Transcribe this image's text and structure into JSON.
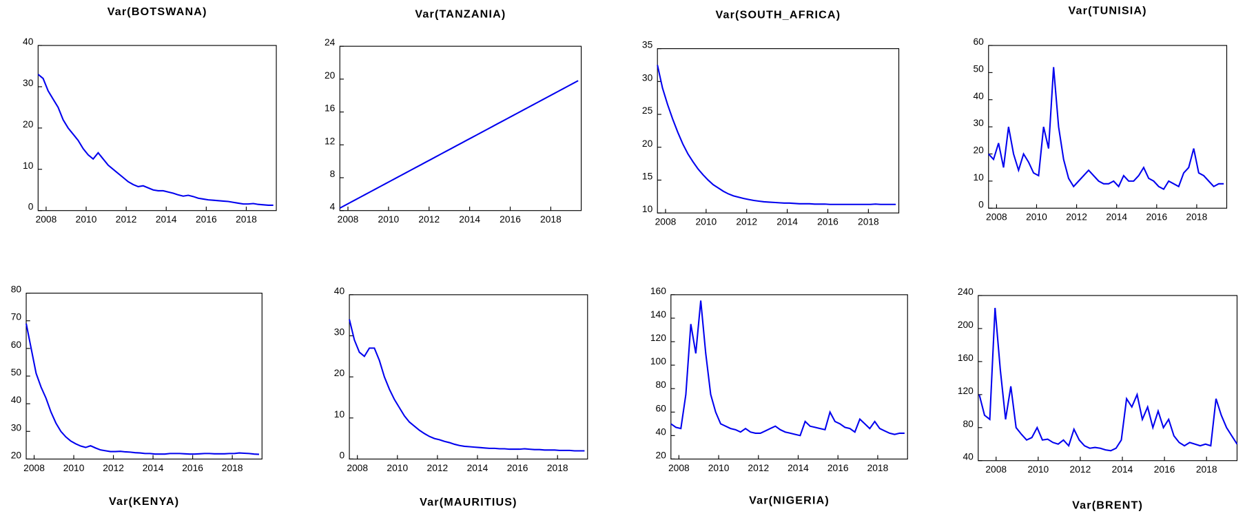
{
  "chart_data": [
    {
      "type": "line",
      "title": "Var(BOTSWANA)",
      "color": "#0000ee",
      "x": [
        2007.6,
        2007.85,
        2008.1,
        2008.35,
        2008.6,
        2008.85,
        2009.1,
        2009.35,
        2009.6,
        2009.85,
        2010.1,
        2010.35,
        2010.6,
        2010.85,
        2011.1,
        2011.35,
        2011.6,
        2011.85,
        2012.1,
        2012.35,
        2012.6,
        2012.85,
        2013.1,
        2013.35,
        2013.6,
        2013.85,
        2014.1,
        2014.35,
        2014.6,
        2014.85,
        2015.1,
        2015.35,
        2015.6,
        2015.85,
        2016.1,
        2016.35,
        2016.6,
        2016.85,
        2017.1,
        2017.35,
        2017.6,
        2017.85,
        2018.1,
        2018.35,
        2018.6,
        2018.85,
        2019.1,
        2019.35
      ],
      "values": [
        33,
        32,
        29,
        27,
        25,
        22,
        20,
        18.5,
        17,
        15,
        13.5,
        12.5,
        14,
        12.5,
        11,
        10,
        9,
        8,
        7,
        6.3,
        5.8,
        6,
        5.5,
        5,
        4.8,
        4.8,
        4.5,
        4.2,
        3.8,
        3.5,
        3.7,
        3.4,
        3,
        2.8,
        2.6,
        2.5,
        2.4,
        2.3,
        2.2,
        2,
        1.8,
        1.6,
        1.6,
        1.7,
        1.5,
        1.4,
        1.3,
        1.3
      ],
      "xlim": [
        2007.6,
        2019.5
      ],
      "xticks": [
        2008,
        2010,
        2012,
        2014,
        2016,
        2018
      ],
      "ylim": [
        0,
        40
      ],
      "yticks": [
        0,
        10,
        20,
        30,
        40
      ]
    },
    {
      "type": "line",
      "title": "Var(TANZANIA)",
      "color": "#0000ee",
      "x": [
        2007.6,
        2007.85,
        2008.1,
        2008.35,
        2008.6,
        2008.85,
        2009.1,
        2009.35,
        2009.6,
        2009.85,
        2010.1,
        2010.35,
        2010.6,
        2010.85,
        2011.1,
        2011.35,
        2011.6,
        2011.85,
        2012.1,
        2012.35,
        2012.6,
        2012.85,
        2013.1,
        2013.35,
        2013.6,
        2013.85,
        2014.1,
        2014.35,
        2014.6,
        2014.85,
        2015.1,
        2015.35,
        2015.6,
        2015.85,
        2016.1,
        2016.35,
        2016.6,
        2016.85,
        2017.1,
        2017.35,
        2017.6,
        2017.85,
        2018.1,
        2018.35,
        2018.6,
        2018.85,
        2019.1,
        2019.35
      ],
      "values": [
        4.3,
        4.63,
        4.96,
        5.29,
        5.62,
        5.95,
        6.28,
        6.61,
        6.94,
        7.27,
        7.6,
        7.93,
        8.26,
        8.59,
        8.92,
        9.25,
        9.58,
        9.91,
        10.24,
        10.57,
        10.9,
        11.23,
        11.56,
        11.89,
        12.22,
        12.55,
        12.88,
        13.21,
        13.54,
        13.87,
        14.2,
        14.53,
        14.86,
        15.19,
        15.52,
        15.85,
        16.18,
        16.51,
        16.84,
        17.17,
        17.5,
        17.83,
        18.16,
        18.49,
        18.82,
        19.15,
        19.48,
        19.81
      ],
      "xlim": [
        2007.6,
        2019.5
      ],
      "xticks": [
        2008,
        2010,
        2012,
        2014,
        2016,
        2018
      ],
      "ylim": [
        4,
        24
      ],
      "yticks": [
        4,
        8,
        12,
        16,
        20,
        24
      ]
    },
    {
      "type": "line",
      "title": "Var(SOUTH_AFRICA)",
      "color": "#0000ee",
      "x": [
        2007.6,
        2007.85,
        2008.1,
        2008.35,
        2008.6,
        2008.85,
        2009.1,
        2009.35,
        2009.6,
        2009.85,
        2010.1,
        2010.35,
        2010.6,
        2010.85,
        2011.1,
        2011.35,
        2011.6,
        2011.85,
        2012.1,
        2012.35,
        2012.6,
        2012.85,
        2013.1,
        2013.35,
        2013.6,
        2013.85,
        2014.1,
        2014.35,
        2014.6,
        2014.85,
        2015.1,
        2015.35,
        2015.6,
        2015.85,
        2016.1,
        2016.35,
        2016.6,
        2016.85,
        2017.1,
        2017.35,
        2017.6,
        2017.85,
        2018.1,
        2018.35,
        2018.6,
        2018.85,
        2019.1,
        2019.35
      ],
      "values": [
        32.5,
        29,
        26.5,
        24.3,
        22.3,
        20.5,
        19,
        17.8,
        16.7,
        15.8,
        15,
        14.3,
        13.8,
        13.3,
        12.9,
        12.6,
        12.4,
        12.2,
        12.05,
        11.9,
        11.8,
        11.7,
        11.65,
        11.6,
        11.55,
        11.5,
        11.5,
        11.45,
        11.4,
        11.4,
        11.4,
        11.35,
        11.35,
        11.35,
        11.3,
        11.3,
        11.3,
        11.3,
        11.3,
        11.3,
        11.3,
        11.3,
        11.3,
        11.35,
        11.3,
        11.3,
        11.3,
        11.3
      ],
      "xlim": [
        2007.6,
        2019.5
      ],
      "xticks": [
        2008,
        2010,
        2012,
        2014,
        2016,
        2018
      ],
      "ylim": [
        10,
        35
      ],
      "yticks": [
        10,
        15,
        20,
        25,
        30,
        35
      ]
    },
    {
      "type": "line",
      "title": "Var(TUNISIA)",
      "color": "#0000ee",
      "x": [
        2007.6,
        2007.85,
        2008.1,
        2008.35,
        2008.6,
        2008.85,
        2009.1,
        2009.35,
        2009.6,
        2009.85,
        2010.1,
        2010.35,
        2010.6,
        2010.85,
        2011.1,
        2011.35,
        2011.6,
        2011.85,
        2012.1,
        2012.35,
        2012.6,
        2012.85,
        2013.1,
        2013.35,
        2013.6,
        2013.85,
        2014.1,
        2014.35,
        2014.6,
        2014.85,
        2015.1,
        2015.35,
        2015.6,
        2015.85,
        2016.1,
        2016.35,
        2016.6,
        2016.85,
        2017.1,
        2017.35,
        2017.6,
        2017.85,
        2018.1,
        2018.35,
        2018.6,
        2018.85,
        2019.1,
        2019.35
      ],
      "values": [
        20,
        18,
        24,
        15,
        30,
        20,
        14,
        20,
        17,
        13,
        12,
        30,
        22,
        52,
        30,
        18,
        11,
        8,
        10,
        12,
        14,
        12,
        10,
        9,
        9,
        10,
        8,
        12,
        10,
        10,
        12,
        15,
        11,
        10,
        8,
        7,
        10,
        9,
        8,
        13,
        15,
        22,
        13,
        12,
        10,
        8,
        9,
        9
      ],
      "xlim": [
        2007.6,
        2019.5
      ],
      "xticks": [
        2008,
        2010,
        2012,
        2014,
        2016,
        2018
      ],
      "ylim": [
        0,
        60
      ],
      "yticks": [
        0,
        10,
        20,
        30,
        40,
        50,
        60
      ]
    },
    {
      "type": "line",
      "title": "Var(KENYA)",
      "color": "#0000ee",
      "x": [
        2007.6,
        2007.85,
        2008.1,
        2008.35,
        2008.6,
        2008.85,
        2009.1,
        2009.35,
        2009.6,
        2009.85,
        2010.1,
        2010.35,
        2010.6,
        2010.85,
        2011.1,
        2011.35,
        2011.6,
        2011.85,
        2012.1,
        2012.35,
        2012.6,
        2012.85,
        2013.1,
        2013.35,
        2013.6,
        2013.85,
        2014.1,
        2014.35,
        2014.6,
        2014.85,
        2015.1,
        2015.35,
        2015.6,
        2015.85,
        2016.1,
        2016.35,
        2016.6,
        2016.85,
        2017.1,
        2017.35,
        2017.6,
        2017.85,
        2018.1,
        2018.35,
        2018.6,
        2018.85,
        2019.1,
        2019.35
      ],
      "values": [
        69,
        60,
        51,
        46,
        42,
        37,
        33,
        30,
        28,
        26.5,
        25.5,
        24.7,
        24.2,
        24.8,
        24,
        23.3,
        23,
        22.7,
        22.7,
        22.8,
        22.6,
        22.5,
        22.3,
        22.2,
        22,
        22,
        21.8,
        21.8,
        21.8,
        22,
        22,
        22,
        21.9,
        21.8,
        21.8,
        21.9,
        22,
        22,
        21.9,
        21.9,
        21.9,
        22,
        22,
        22.2,
        22.1,
        22,
        21.8,
        21.7
      ],
      "xlim": [
        2007.6,
        2019.5
      ],
      "xticks": [
        2008,
        2010,
        2012,
        2014,
        2016,
        2018
      ],
      "ylim": [
        20,
        80
      ],
      "yticks": [
        20,
        30,
        40,
        50,
        60,
        70,
        80
      ]
    },
    {
      "type": "line",
      "title": "Var(MAURITIUS)",
      "color": "#0000ee",
      "x": [
        2007.6,
        2007.85,
        2008.1,
        2008.35,
        2008.6,
        2008.85,
        2009.1,
        2009.35,
        2009.6,
        2009.85,
        2010.1,
        2010.35,
        2010.6,
        2010.85,
        2011.1,
        2011.35,
        2011.6,
        2011.85,
        2012.1,
        2012.35,
        2012.6,
        2012.85,
        2013.1,
        2013.35,
        2013.6,
        2013.85,
        2014.1,
        2014.35,
        2014.6,
        2014.85,
        2015.1,
        2015.35,
        2015.6,
        2015.85,
        2016.1,
        2016.35,
        2016.6,
        2016.85,
        2017.1,
        2017.35,
        2017.6,
        2017.85,
        2018.1,
        2018.35,
        2018.6,
        2018.85,
        2019.1,
        2019.35
      ],
      "values": [
        34,
        29,
        26,
        25,
        27,
        27,
        24,
        20,
        17,
        14.5,
        12.5,
        10.5,
        9,
        8,
        7,
        6.2,
        5.5,
        5,
        4.7,
        4.3,
        4,
        3.6,
        3.3,
        3.1,
        3,
        2.9,
        2.8,
        2.7,
        2.6,
        2.6,
        2.5,
        2.5,
        2.4,
        2.4,
        2.4,
        2.5,
        2.4,
        2.3,
        2.3,
        2.2,
        2.2,
        2.2,
        2.1,
        2.1,
        2.1,
        2.0,
        2.0,
        2.0
      ],
      "xlim": [
        2007.6,
        2019.5
      ],
      "xticks": [
        2008,
        2010,
        2012,
        2014,
        2016,
        2018
      ],
      "ylim": [
        0,
        40
      ],
      "yticks": [
        0,
        10,
        20,
        30,
        40
      ]
    },
    {
      "type": "line",
      "title": "Var(NIGERIA)",
      "color": "#0000ee",
      "x": [
        2007.6,
        2007.85,
        2008.1,
        2008.35,
        2008.6,
        2008.85,
        2009.1,
        2009.35,
        2009.6,
        2009.85,
        2010.1,
        2010.35,
        2010.6,
        2010.85,
        2011.1,
        2011.35,
        2011.6,
        2011.85,
        2012.1,
        2012.35,
        2012.6,
        2012.85,
        2013.1,
        2013.35,
        2013.6,
        2013.85,
        2014.1,
        2014.35,
        2014.6,
        2014.85,
        2015.1,
        2015.35,
        2015.6,
        2015.85,
        2016.1,
        2016.35,
        2016.6,
        2016.85,
        2017.1,
        2017.35,
        2017.6,
        2017.85,
        2018.1,
        2018.35,
        2018.6,
        2018.85,
        2019.1,
        2019.35
      ],
      "values": [
        50,
        47,
        46,
        75,
        135,
        110,
        155,
        110,
        75,
        60,
        50,
        48,
        46,
        45,
        43,
        46,
        43,
        42,
        42,
        44,
        46,
        48,
        45,
        43,
        42,
        41,
        40,
        52,
        48,
        47,
        46,
        45,
        60,
        52,
        50,
        47,
        46,
        43,
        54,
        50,
        46,
        52,
        46,
        44,
        42,
        41,
        42,
        42
      ],
      "xlim": [
        2007.6,
        2019.5
      ],
      "xticks": [
        2008,
        2010,
        2012,
        2014,
        2016,
        2018
      ],
      "ylim": [
        20,
        160
      ],
      "yticks": [
        20,
        40,
        60,
        80,
        100,
        120,
        140,
        160
      ]
    },
    {
      "type": "line",
      "title": "Var(BRENT)",
      "color": "#0000ee",
      "x": [
        2007.2,
        2007.45,
        2007.7,
        2007.95,
        2008.2,
        2008.45,
        2008.7,
        2008.95,
        2009.2,
        2009.45,
        2009.7,
        2009.95,
        2010.2,
        2010.45,
        2010.7,
        2010.95,
        2011.2,
        2011.45,
        2011.7,
        2011.95,
        2012.2,
        2012.45,
        2012.7,
        2012.95,
        2013.2,
        2013.45,
        2013.7,
        2013.95,
        2014.2,
        2014.45,
        2014.7,
        2014.95,
        2015.2,
        2015.45,
        2015.7,
        2015.95,
        2016.2,
        2016.45,
        2016.7,
        2016.95,
        2017.2,
        2017.45,
        2017.7,
        2017.95,
        2018.2,
        2018.45,
        2018.7,
        2018.95,
        2019.2,
        2019.45
      ],
      "values": [
        120,
        95,
        90,
        225,
        150,
        90,
        130,
        80,
        72,
        65,
        68,
        80,
        65,
        66,
        62,
        60,
        65,
        58,
        78,
        65,
        58,
        55,
        56,
        55,
        53,
        52,
        55,
        65,
        115,
        105,
        120,
        90,
        105,
        80,
        100,
        80,
        90,
        70,
        62,
        58,
        62,
        60,
        58,
        60,
        58,
        115,
        95,
        80,
        70,
        60
      ],
      "xlim": [
        2007.15,
        2019.45
      ],
      "xticks": [
        2008,
        2010,
        2012,
        2014,
        2016,
        2018
      ],
      "ylim": [
        40,
        240
      ],
      "yticks": [
        40,
        80,
        120,
        160,
        200,
        240
      ]
    }
  ]
}
